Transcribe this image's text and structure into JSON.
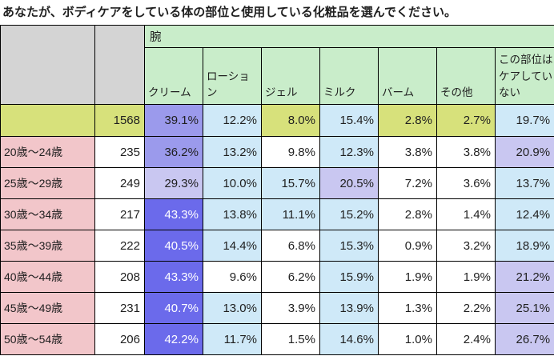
{
  "title": "あなたが、ボディケアをしている体の部位と使用している化粧品を選んでください。",
  "chart_data": {
    "type": "table",
    "subtype": "heatmap-crosstab",
    "group_header": "腕",
    "columns": [
      "クリーム",
      "ローション",
      "ジェル",
      "ミルク",
      "バーム",
      "その他",
      "この部位はケアしていない"
    ],
    "value_unit": "%",
    "rows": [
      {
        "label": "",
        "n": 1568,
        "is_total": true,
        "values": [
          39.1,
          12.2,
          8.0,
          15.4,
          2.8,
          2.7,
          19.7
        ]
      },
      {
        "label": "20歳〜24歳",
        "n": 235,
        "is_total": false,
        "values": [
          36.2,
          13.2,
          9.8,
          12.3,
          3.8,
          3.8,
          20.9
        ]
      },
      {
        "label": "25歳〜29歳",
        "n": 249,
        "is_total": false,
        "values": [
          29.3,
          10.0,
          15.7,
          20.5,
          7.2,
          3.6,
          13.7
        ]
      },
      {
        "label": "30歳〜34歳",
        "n": 217,
        "is_total": false,
        "values": [
          43.3,
          13.8,
          11.1,
          15.2,
          2.8,
          1.4,
          12.4
        ]
      },
      {
        "label": "35歳〜39歳",
        "n": 222,
        "is_total": false,
        "values": [
          40.5,
          14.4,
          6.8,
          15.3,
          0.9,
          3.2,
          18.9
        ]
      },
      {
        "label": "40歳〜44歳",
        "n": 208,
        "is_total": false,
        "values": [
          43.3,
          9.6,
          6.2,
          15.9,
          1.9,
          1.9,
          21.2
        ]
      },
      {
        "label": "45歳〜49歳",
        "n": 231,
        "is_total": false,
        "values": [
          40.7,
          13.0,
          3.9,
          13.9,
          1.3,
          2.2,
          25.1
        ]
      },
      {
        "label": "50歳〜54歳",
        "n": 206,
        "is_total": false,
        "values": [
          42.2,
          11.7,
          1.5,
          14.6,
          1.0,
          2.4,
          26.7
        ]
      }
    ]
  },
  "colors": {
    "corner_gray": "#d4d4d4",
    "header_green": "#c9edca",
    "total_row_base": "#d7e17b",
    "age_label_pink": "#f2c6ca",
    "cell_white": "#ffffff",
    "heat_40_plus": "#6b6aeb",
    "heat_30_39": "#9b9aec",
    "heat_20_29": "#c9c7f1",
    "heat_10_19": "#cfe9f8",
    "heat_text_dark": "#1f1f1f",
    "heat_text_light": "#ffffff",
    "border": "#000000"
  }
}
